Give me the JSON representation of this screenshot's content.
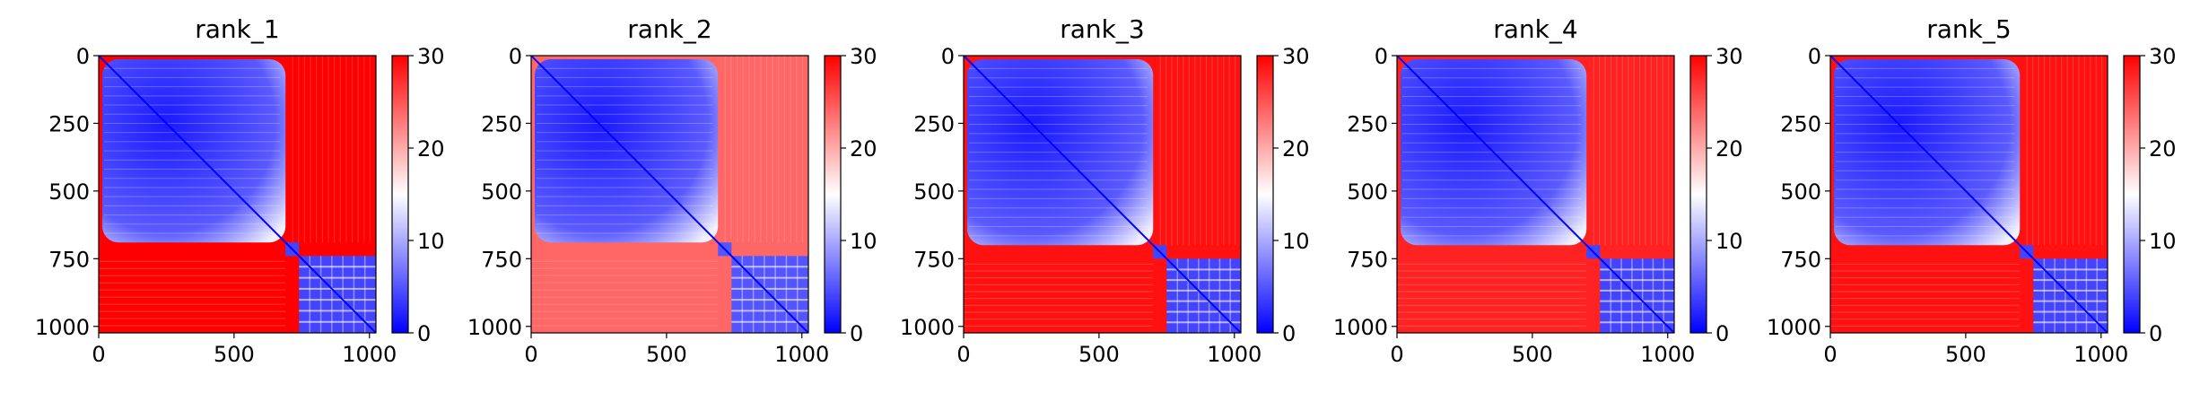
{
  "chart_data": [
    {
      "type": "heatmap",
      "title": "rank_1",
      "xticks": [
        "0",
        "500",
        "1000"
      ],
      "yticks": [
        "0",
        "250",
        "500",
        "750",
        "1000"
      ],
      "xlim": [
        0,
        1024
      ],
      "ylim": [
        1024,
        0
      ],
      "colorbar": {
        "ticks": [
          "0",
          "10",
          "20",
          "30"
        ],
        "range": [
          0,
          30
        ]
      },
      "colormap": [
        "#0000ff",
        "#ffffff",
        "#ff0000"
      ],
      "blocks": {
        "boundary": 690,
        "cluster2_start": 740,
        "offdiag_value": 30,
        "within_block_value": 4
      }
    },
    {
      "type": "heatmap",
      "title": "rank_2",
      "xticks": [
        "0",
        "500",
        "1000"
      ],
      "yticks": [
        "0",
        "250",
        "500",
        "750",
        "1000"
      ],
      "xlim": [
        0,
        1024
      ],
      "ylim": [
        1024,
        0
      ],
      "colorbar": {
        "ticks": [
          "0",
          "10",
          "20",
          "30"
        ],
        "range": [
          0,
          30
        ]
      },
      "colormap": [
        "#0000ff",
        "#ffffff",
        "#ff0000"
      ],
      "blocks": {
        "boundary": 690,
        "cluster2_start": 740,
        "offdiag_value": 24,
        "within_block_value": 5
      }
    },
    {
      "type": "heatmap",
      "title": "rank_3",
      "xticks": [
        "0",
        "500",
        "1000"
      ],
      "yticks": [
        "0",
        "250",
        "500",
        "750",
        "1000"
      ],
      "xlim": [
        0,
        1024
      ],
      "ylim": [
        1024,
        0
      ],
      "colorbar": {
        "ticks": [
          "0",
          "10",
          "20",
          "30"
        ],
        "range": [
          0,
          30
        ]
      },
      "colormap": [
        "#0000ff",
        "#ffffff",
        "#ff0000"
      ],
      "blocks": {
        "boundary": 700,
        "cluster2_start": 750,
        "offdiag_value": 29,
        "within_block_value": 4
      }
    },
    {
      "type": "heatmap",
      "title": "rank_4",
      "xticks": [
        "0",
        "500",
        "1000"
      ],
      "yticks": [
        "0",
        "250",
        "500",
        "750",
        "1000"
      ],
      "xlim": [
        0,
        1024
      ],
      "ylim": [
        1024,
        0
      ],
      "colorbar": {
        "ticks": [
          "0",
          "10",
          "20",
          "30"
        ],
        "range": [
          0,
          30
        ]
      },
      "colormap": [
        "#0000ff",
        "#ffffff",
        "#ff0000"
      ],
      "blocks": {
        "boundary": 700,
        "cluster2_start": 750,
        "offdiag_value": 28,
        "within_block_value": 4
      }
    },
    {
      "type": "heatmap",
      "title": "rank_5",
      "xticks": [
        "0",
        "500",
        "1000"
      ],
      "yticks": [
        "0",
        "250",
        "500",
        "750",
        "1000"
      ],
      "xlim": [
        0,
        1024
      ],
      "ylim": [
        1024,
        0
      ],
      "colorbar": {
        "ticks": [
          "0",
          "10",
          "20",
          "30"
        ],
        "range": [
          0,
          30
        ]
      },
      "colormap": [
        "#0000ff",
        "#ffffff",
        "#ff0000"
      ],
      "blocks": {
        "boundary": 700,
        "cluster2_start": 750,
        "offdiag_value": 29,
        "within_block_value": 4
      }
    }
  ]
}
